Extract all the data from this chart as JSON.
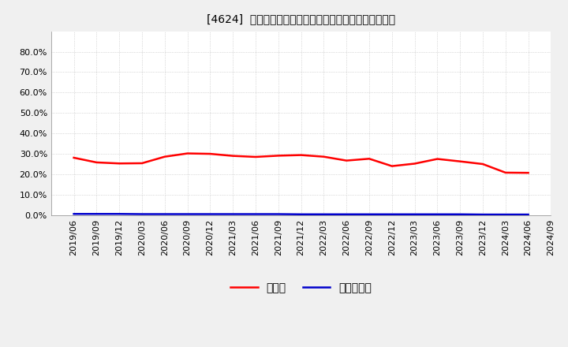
{
  "title": "[4624]  現預金、有利子負債の総資産に対する比率の推移",
  "x_labels": [
    "2019/06",
    "2019/09",
    "2019/12",
    "2020/03",
    "2020/06",
    "2020/09",
    "2020/12",
    "2021/03",
    "2021/06",
    "2021/09",
    "2021/12",
    "2022/03",
    "2022/06",
    "2022/09",
    "2022/12",
    "2023/03",
    "2023/06",
    "2023/09",
    "2023/12",
    "2024/03",
    "2024/06",
    "2024/09"
  ],
  "cash_ratio": [
    0.281,
    0.258,
    0.253,
    0.254,
    0.286,
    0.302,
    0.3,
    0.29,
    0.285,
    0.291,
    0.294,
    0.286,
    0.267,
    0.276,
    0.24,
    0.252,
    0.275,
    0.263,
    0.25,
    0.208,
    0.207,
    null
  ],
  "debt_ratio": [
    0.006,
    0.006,
    0.006,
    0.005,
    0.005,
    0.005,
    0.005,
    0.005,
    0.005,
    0.005,
    0.004,
    0.004,
    0.004,
    0.004,
    0.004,
    0.004,
    0.004,
    0.004,
    0.003,
    0.003,
    0.003,
    null
  ],
  "cash_color": "#ff0000",
  "debt_color": "#0000cc",
  "plot_bg_color": "#ffffff",
  "fig_bg_color": "#f0f0f0",
  "grid_color": "#aaaaaa",
  "ylim": [
    0.0,
    0.9
  ],
  "yticks": [
    0.0,
    0.1,
    0.2,
    0.3,
    0.4,
    0.5,
    0.6,
    0.7,
    0.8
  ],
  "legend_cash": "現預金",
  "legend_debt": "有利子負債",
  "title_fontsize": 12,
  "tick_fontsize": 8,
  "legend_fontsize": 10
}
